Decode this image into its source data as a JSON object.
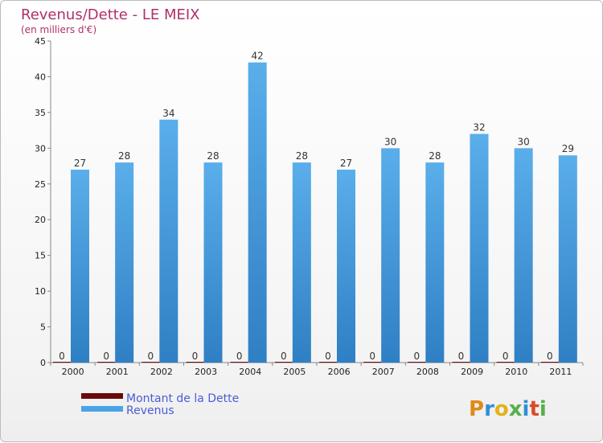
{
  "chart_data": {
    "type": "bar",
    "title": "Revenus/Dette - LE MEIX",
    "subtitle": "(en milliers d'€)",
    "categories": [
      "2000",
      "2001",
      "2002",
      "2003",
      "2004",
      "2005",
      "2006",
      "2007",
      "2008",
      "2009",
      "2010",
      "2011"
    ],
    "series": [
      {
        "name": "Montant de la Dette",
        "color": "#6b0a0a",
        "values": [
          0,
          0,
          0,
          0,
          0,
          0,
          0,
          0,
          0,
          0,
          0,
          0
        ]
      },
      {
        "name": "Revenus",
        "color": "#4aa3e6",
        "values": [
          27,
          28,
          34,
          28,
          42,
          28,
          27,
          30,
          28,
          32,
          30,
          29
        ]
      }
    ],
    "ylim": [
      0,
      45
    ],
    "yticks": [
      0,
      5,
      10,
      15,
      20,
      25,
      30,
      35,
      40,
      45
    ],
    "xlabel": "",
    "ylabel": "",
    "grid": false,
    "legend_position": "bottom-left"
  },
  "branding": {
    "letters": [
      "P",
      "r",
      "o",
      "x",
      "i",
      "t",
      "i"
    ],
    "colors": [
      "#e08a1a",
      "#2e8fd8",
      "#e2b21a",
      "#56b04a",
      "#2e8fd8",
      "#d94c2a",
      "#56b04a"
    ]
  }
}
